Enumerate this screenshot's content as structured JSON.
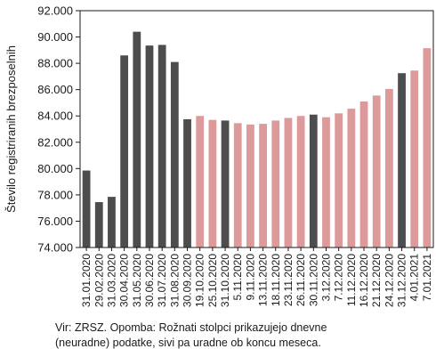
{
  "chart_data": {
    "type": "bar",
    "ylabel": "Število registriranih brezposelnih",
    "ylim": [
      74000,
      92000
    ],
    "yticks": [
      74000,
      76000,
      78000,
      80000,
      82000,
      84000,
      86000,
      88000,
      90000,
      92000
    ],
    "ytick_labels": [
      "74.000",
      "76.000",
      "78.000",
      "80.000",
      "82.000",
      "84.000",
      "86.000",
      "88.000",
      "90.000",
      "92.000"
    ],
    "grid": false,
    "categories": [
      "31.01.2020",
      "29.02.2020",
      "31.03.2020",
      "30.04.2020",
      "31.05.2020",
      "30.06.2020",
      "31.07.2020",
      "31.08.2020",
      "30.09.2020",
      "19.10.2020",
      "25.10.2020",
      "31.10.2020",
      "5.11.2020",
      "9.11.2020",
      "13.11.2020",
      "18.11.2020",
      "23.11.2020",
      "26.11.2020",
      "30.11.2020",
      "3.12.2020",
      "7.12.2020",
      "11.12.2020",
      "16.12.2020",
      "21.12.2020",
      "24.12.2020",
      "31.12.2020",
      "4.01.2021",
      "7.01.2021"
    ],
    "values": [
      79850,
      77450,
      77850,
      88600,
      90400,
      89350,
      89400,
      88100,
      83750,
      84000,
      83700,
      83650,
      83450,
      83350,
      83400,
      83650,
      83850,
      84000,
      84100,
      83900,
      84200,
      84550,
      85100,
      85550,
      86050,
      87250,
      87450,
      89150
    ],
    "bar_types": [
      "monthly",
      "monthly",
      "monthly",
      "monthly",
      "monthly",
      "monthly",
      "monthly",
      "monthly",
      "monthly",
      "daily",
      "daily",
      "monthly",
      "daily",
      "daily",
      "daily",
      "daily",
      "daily",
      "daily",
      "monthly",
      "daily",
      "daily",
      "daily",
      "daily",
      "daily",
      "daily",
      "monthly",
      "daily",
      "daily"
    ],
    "colors": {
      "monthly": "#4d4d4d",
      "daily": "#dd9a9a",
      "frame": "#1a1a1a"
    }
  },
  "note": {
    "line1": "Vir: ZRSZ. Opomba: Rožnati stolpci prikazujejo dnevne",
    "line2": "(neuradne) podatke, sivi pa uradne ob koncu meseca."
  }
}
